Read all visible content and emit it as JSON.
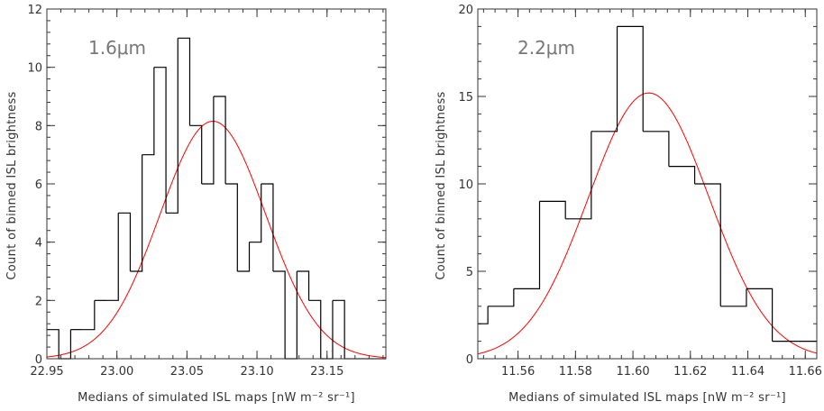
{
  "chart_data": [
    {
      "type": "histogram",
      "annotation": "1.6μm",
      "xlabel": "Medians of simulated ISL maps [nW m⁻² sr⁻¹]",
      "ylabel": "Count of binned ISL brightness",
      "xlim": [
        22.95,
        23.192
      ],
      "ylim": [
        0,
        12
      ],
      "x_ticks": [
        "22.95",
        "23.00",
        "23.05",
        "23.10",
        "23.15"
      ],
      "x_tick_values": [
        22.95,
        23.0,
        23.05,
        23.1,
        23.15
      ],
      "y_ticks": [
        "0",
        "2",
        "4",
        "6",
        "8",
        "10",
        "12"
      ],
      "y_tick_values": [
        0,
        2,
        4,
        6,
        8,
        10,
        12
      ],
      "bin_edges": [
        22.95,
        22.9585,
        22.967,
        22.9755,
        22.984,
        22.9925,
        23.001,
        23.0095,
        23.018,
        23.0265,
        23.035,
        23.0435,
        23.052,
        23.0605,
        23.069,
        23.0775,
        23.086,
        23.0945,
        23.103,
        23.1115,
        23.12,
        23.1285,
        23.137,
        23.1455,
        23.154,
        23.1625,
        23.171,
        23.1795,
        23.188,
        23.192
      ],
      "counts": [
        1,
        0,
        1,
        1,
        2,
        2,
        5,
        3,
        7,
        10,
        5,
        11,
        8,
        6,
        9,
        6,
        3,
        4,
        6,
        3,
        0,
        3,
        2,
        0,
        2,
        0,
        0,
        0,
        0
      ],
      "fit": {
        "type": "gaussian",
        "amplitude": 8.15,
        "mean": 23.0685,
        "sigma": 0.0378,
        "color": "#ff0000"
      },
      "histogram_color": "#000000",
      "axis_color": "#333333"
    },
    {
      "type": "histogram",
      "annotation": "2.2μm",
      "xlabel": "Medians of simulated ISL maps [nW m⁻² sr⁻¹]",
      "ylabel": "Count of binned ISL brightness",
      "xlim": [
        11.546,
        11.664
      ],
      "ylim": [
        0,
        20
      ],
      "x_ticks": [
        "11.56",
        "11.58",
        "11.60",
        "11.62",
        "11.64",
        "11.66"
      ],
      "x_tick_values": [
        11.56,
        11.58,
        11.6,
        11.62,
        11.64,
        11.66
      ],
      "y_ticks": [
        "0",
        "5",
        "10",
        "15",
        "20"
      ],
      "y_tick_values": [
        0,
        5,
        10,
        15,
        20
      ],
      "bin_edges": [
        11.546,
        11.5495,
        11.5585,
        11.5675,
        11.5765,
        11.5855,
        11.5945,
        11.6035,
        11.6125,
        11.6215,
        11.6305,
        11.6395,
        11.6485,
        11.6575,
        11.664
      ],
      "counts": [
        2,
        3,
        4,
        9,
        8,
        13,
        19,
        13,
        11,
        10,
        3,
        4,
        1,
        1
      ],
      "fit": {
        "type": "gaussian",
        "amplitude": 15.2,
        "mean": 11.6055,
        "sigma": 0.021,
        "color": "#ff0000"
      },
      "histogram_color": "#000000",
      "axis_color": "#333333"
    }
  ]
}
